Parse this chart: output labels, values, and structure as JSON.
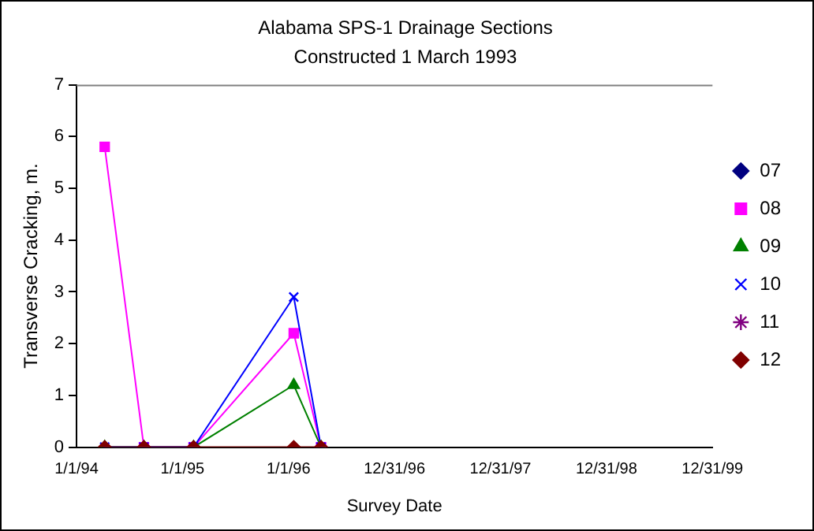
{
  "chart_data": {
    "type": "line",
    "title": "Alabama SPS-1 Drainage Sections",
    "subtitle": "Constructed 1 March 1993",
    "xlabel": "Survey Date",
    "ylabel": "Transverse Cracking, m.",
    "x": [
      "1994-04-08",
      "1994-08-21",
      "1995-02-08",
      "1996-01-19",
      "1996-04-22"
    ],
    "series": [
      {
        "name": "07",
        "color": "#000080",
        "marker": "diamond",
        "values": [
          null,
          null,
          null,
          null,
          null
        ]
      },
      {
        "name": "08",
        "color": "#ff00ff",
        "marker": "square",
        "values": [
          5.8,
          0,
          0,
          2.2,
          0
        ]
      },
      {
        "name": "09",
        "color": "#008000",
        "marker": "triangle",
        "values": [
          0,
          0,
          0,
          1.2,
          0
        ]
      },
      {
        "name": "10",
        "color": "#0000ff",
        "marker": "cross",
        "values": [
          0,
          0,
          0,
          2.9,
          0
        ]
      },
      {
        "name": "11",
        "color": "#800080",
        "marker": "star",
        "values": [
          null,
          null,
          null,
          null,
          null
        ]
      },
      {
        "name": "12",
        "color": "#800000",
        "marker": "diamond",
        "values": [
          0,
          0,
          0,
          0,
          0
        ]
      }
    ],
    "xlim": [
      "1994-01-01",
      "1999-12-31"
    ],
    "xticks": [
      {
        "value": "1994-01-01",
        "label": "1/1/94"
      },
      {
        "value": "1995-01-01",
        "label": "1/1/95"
      },
      {
        "value": "1996-01-01",
        "label": "1/1/96"
      },
      {
        "value": "1996-12-31",
        "label": "12/31/96"
      },
      {
        "value": "1997-12-31",
        "label": "12/31/97"
      },
      {
        "value": "1998-12-31",
        "label": "12/31/98"
      },
      {
        "value": "1999-12-31",
        "label": "12/31/99"
      }
    ],
    "ylim": [
      0,
      7
    ],
    "yticks": [
      0,
      1,
      2,
      3,
      4,
      5,
      6,
      7
    ],
    "grid": false,
    "legend": "right",
    "line_style": "solid"
  }
}
